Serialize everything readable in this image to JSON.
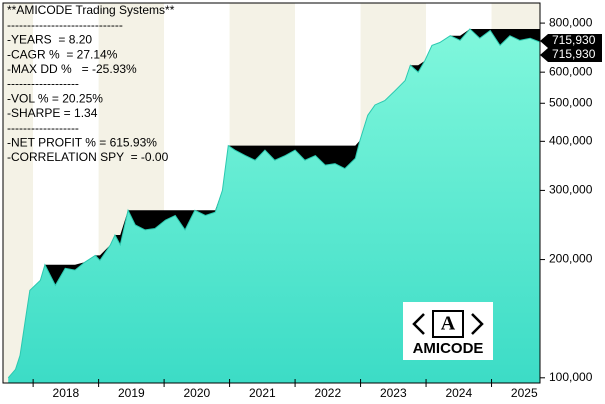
{
  "chart_data": {
    "type": "area",
    "annotations": [
      "**AMICODE Trading Systems**",
      "-----------------------------",
      "-YEARS  = 8.20",
      "-CAGR %  = 27.14%",
      "-MAX DD %   = -25.93%",
      "------------------",
      "-VOL % = 20.25%",
      "-SHARPE = 1.34",
      "------------------",
      "-NET PROFIT % = 615.93%",
      "-CORRELATION SPY  = -0.00"
    ],
    "logo_mark": "A",
    "logo_text": "AMICODE",
    "log_scale": true,
    "series": [
      {
        "color": "#5ef0d2",
        "x": [
          2017.62,
          2017.73,
          2017.8,
          2017.88,
          2017.95,
          2018.11,
          2018.18,
          2018.34,
          2018.49,
          2018.64,
          2018.79,
          2018.95,
          2019.02,
          2019.18,
          2019.25,
          2019.33,
          2019.45,
          2019.56,
          2019.71,
          2019.86,
          2020.02,
          2020.17,
          2020.32,
          2020.47,
          2020.63,
          2020.78,
          2020.89,
          2020.98,
          2021.08,
          2021.24,
          2021.39,
          2021.54,
          2021.69,
          2021.85,
          2022.0,
          2022.15,
          2022.31,
          2022.46,
          2022.61,
          2022.76,
          2022.92,
          2022.99,
          2023.11,
          2023.22,
          2023.37,
          2023.53,
          2023.68,
          2023.76,
          2023.88,
          2023.98,
          2024.09,
          2024.21,
          2024.37,
          2024.52,
          2024.67,
          2024.82,
          2024.98,
          2025.13,
          2025.28,
          2025.43,
          2025.59,
          2025.74
        ],
        "values": [
          100000,
          105000,
          114000,
          140000,
          167000,
          177000,
          194000,
          172000,
          190000,
          188000,
          197000,
          205000,
          199000,
          218000,
          231000,
          218000,
          267000,
          245000,
          238000,
          240000,
          252000,
          259000,
          238000,
          267000,
          259000,
          264000,
          300000,
          390000,
          380000,
          368000,
          358000,
          380000,
          358000,
          368000,
          380000,
          358000,
          368000,
          348000,
          351000,
          341000,
          362000,
          402000,
          466000,
          495000,
          508000,
          539000,
          571000,
          625000,
          600000,
          641000,
          702000,
          714000,
          743000,
          723000,
          773000,
          732000,
          766000,
          702000,
          743000,
          723000,
          732000,
          715930
        ]
      }
    ],
    "last_label": {
      "value": 715930,
      "label": "715,930"
    },
    "xlim": [
      2017.54,
      2025.74
    ],
    "xticks": [
      2018,
      2019,
      2020,
      2021,
      2022,
      2023,
      2024,
      2025
    ],
    "ylim": [
      97000,
      900000
    ],
    "yticks": [
      {
        "value": 100000,
        "label": "100,000"
      },
      {
        "value": 200000,
        "label": "200,000"
      },
      {
        "value": 300000,
        "label": "300,000"
      },
      {
        "value": 400000,
        "label": "400,000"
      },
      {
        "value": 500000,
        "label": "500,000"
      },
      {
        "value": 600000,
        "label": "600,000"
      },
      {
        "value": 800000,
        "label": "800,000"
      }
    ]
  }
}
